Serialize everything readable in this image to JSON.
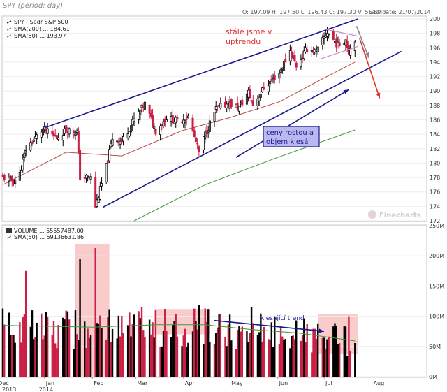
{
  "header": {
    "title": "SPY",
    "period": "(period: day)",
    "ohlc": "O: 197.09   H: 197.50   L: 196.43   C: 197.30   V: 55.6M",
    "last_date": "Last date: 21/07/2014"
  },
  "price_panel": {
    "legend": [
      {
        "label": "SPY - Spdr S&P 500",
        "color": "#000000"
      },
      {
        "label": "SMA(200) ... 184.61",
        "color": "#3a9a3a"
      },
      {
        "label": "SMA(50) ... 193.97",
        "color": "#b84a4a"
      }
    ],
    "annotations": {
      "uptrend": [
        "stále jsme v",
        "uptrendu"
      ],
      "box": [
        "ceny rostou a",
        "objem klesá"
      ]
    },
    "watermark": "Finecharts"
  },
  "volume_panel": {
    "legend": [
      {
        "label": "VOLUME ... 55557487.00",
        "color": "#000000"
      },
      {
        "label": "SMA(50) ... 59136631.86",
        "color": "#3a9a3a"
      }
    ],
    "annotation": "klesající trend"
  },
  "x_axis": {
    "months": [
      "Dec",
      "Jan",
      "Feb",
      "Mar",
      "Apr",
      "May",
      "Jun",
      "Jul",
      "Aug"
    ],
    "years": [
      "2013",
      "2014"
    ]
  },
  "colors": {
    "up": "#000000",
    "down": "#cc1f45",
    "sma200": "#3a9a3a",
    "sma50": "#b84a4a",
    "trendline": "#1a1a8c",
    "highlight": "#f5a0a0"
  },
  "chart_data": [
    {
      "type": "candlestick",
      "title": "SPY",
      "ylim": [
        172,
        200
      ],
      "y_ticks": [
        172,
        174,
        176,
        178,
        180,
        182,
        184,
        186,
        188,
        190,
        192,
        194,
        196,
        198,
        200
      ],
      "x_start": "2013-12-05",
      "x_end": "2014-09-05",
      "close_series": [
        {
          "date": "2013-12-05",
          "close": 178.0
        },
        {
          "date": "2013-12-12",
          "close": 177.5
        },
        {
          "date": "2013-12-16",
          "close": 178.5
        },
        {
          "date": "2013-12-20",
          "close": 182.0
        },
        {
          "date": "2013-12-31",
          "close": 184.7
        },
        {
          "date": "2014-01-09",
          "close": 183.5
        },
        {
          "date": "2014-01-15",
          "close": 184.7
        },
        {
          "date": "2014-01-22",
          "close": 184.3
        },
        {
          "date": "2014-01-24",
          "close": 178.0
        },
        {
          "date": "2014-01-31",
          "close": 178.0
        },
        {
          "date": "2014-02-03",
          "close": 174.0
        },
        {
          "date": "2014-02-05",
          "close": 175.5
        },
        {
          "date": "2014-02-10",
          "close": 179.5
        },
        {
          "date": "2014-02-14",
          "close": 183.5
        },
        {
          "date": "2014-02-20",
          "close": 183.0
        },
        {
          "date": "2014-02-28",
          "close": 186.0
        },
        {
          "date": "2014-03-07",
          "close": 188.2
        },
        {
          "date": "2014-03-14",
          "close": 184.5
        },
        {
          "date": "2014-03-21",
          "close": 186.3
        },
        {
          "date": "2014-03-28",
          "close": 185.8
        },
        {
          "date": "2014-04-04",
          "close": 186.4
        },
        {
          "date": "2014-04-11",
          "close": 181.5
        },
        {
          "date": "2014-04-15",
          "close": 184.0
        },
        {
          "date": "2014-04-22",
          "close": 187.5
        },
        {
          "date": "2014-04-30",
          "close": 188.3
        },
        {
          "date": "2014-05-07",
          "close": 187.7
        },
        {
          "date": "2014-05-13",
          "close": 189.8
        },
        {
          "date": "2014-05-16",
          "close": 188.1
        },
        {
          "date": "2014-05-23",
          "close": 190.4
        },
        {
          "date": "2014-06-02",
          "close": 192.5
        },
        {
          "date": "2014-06-09",
          "close": 195.6
        },
        {
          "date": "2014-06-13",
          "close": 193.5
        },
        {
          "date": "2014-06-20",
          "close": 195.9
        },
        {
          "date": "2014-06-26",
          "close": 195.4
        },
        {
          "date": "2014-07-03",
          "close": 198.2
        },
        {
          "date": "2014-07-10",
          "close": 196.3
        },
        {
          "date": "2014-07-15",
          "close": 197.2
        },
        {
          "date": "2014-07-17",
          "close": 195.5
        },
        {
          "date": "2014-07-21",
          "close": 197.3
        }
      ],
      "sma50": [
        {
          "date": "2013-12-05",
          "value": 177.0
        },
        {
          "date": "2014-01-15",
          "value": 181.5
        },
        {
          "date": "2014-02-20",
          "value": 181.0
        },
        {
          "date": "2014-03-31",
          "value": 184.5
        },
        {
          "date": "2014-05-01",
          "value": 186.3
        },
        {
          "date": "2014-06-02",
          "value": 188.5
        },
        {
          "date": "2014-07-01",
          "value": 191.8
        },
        {
          "date": "2014-07-21",
          "value": 194.0
        }
      ],
      "sma200": [
        {
          "date": "2014-02-28",
          "value": 172.0
        },
        {
          "date": "2014-04-15",
          "value": 177.0
        },
        {
          "date": "2014-06-01",
          "value": 180.8
        },
        {
          "date": "2014-07-21",
          "value": 184.6
        }
      ],
      "trendlines": [
        {
          "from": {
            "date": "2014-01-01",
            "value": 184.9
          },
          "to": {
            "date": "2014-07-23",
            "value": 200.0
          }
        },
        {
          "from": {
            "date": "2014-02-08",
            "value": 173.9
          },
          "to": {
            "date": "2014-08-20",
            "value": 195.5
          }
        },
        {
          "from": {
            "date": "2014-05-05",
            "value": 180.8
          },
          "to": {
            "date": "2014-07-17",
            "value": 190.2
          }
        },
        {
          "from": {
            "date": "2014-06-28",
            "value": 194.4
          },
          "to": {
            "date": "2014-07-23",
            "value": 196.2
          }
        },
        {
          "from": {
            "date": "2014-07-01",
            "value": 198.6
          },
          "to": {
            "date": "2014-07-23",
            "value": 197.6
          }
        }
      ],
      "arrows": [
        {
          "from": {
            "date": "2014-07-22",
            "value": 199.0
          },
          "to": {
            "date": "2014-07-30",
            "value": 194.6
          },
          "color": "#888888"
        },
        {
          "from": {
            "date": "2014-07-24",
            "value": 197.3
          },
          "to": {
            "date": "2014-08-06",
            "value": 189.0
          },
          "color": "#dd3333"
        }
      ]
    },
    {
      "type": "bar",
      "title": "VOLUME",
      "ylim": [
        0,
        250
      ],
      "y_ticks": [
        0,
        50,
        100,
        150,
        200,
        250
      ],
      "y_tick_labels": [
        "0M",
        "50M",
        "100M",
        "150M",
        "200M",
        "250M"
      ],
      "sma50": [
        {
          "date": "2013-12-05",
          "value": 85
        },
        {
          "date": "2014-02-01",
          "value": 82
        },
        {
          "date": "2014-03-15",
          "value": 86
        },
        {
          "date": "2014-04-15",
          "value": 86
        },
        {
          "date": "2014-05-15",
          "value": 78
        },
        {
          "date": "2014-06-15",
          "value": 72
        },
        {
          "date": "2014-07-21",
          "value": 59
        }
      ],
      "highlights": [
        {
          "from": "2014-01-21",
          "to": "2014-02-12",
          "y_from": 0,
          "y_to": 220
        },
        {
          "from": "2014-03-13",
          "to": "2014-04-18",
          "y_from": 70,
          "y_to": 112
        },
        {
          "from": "2014-06-27",
          "to": "2014-07-23",
          "y_from": 38,
          "y_to": 104
        }
      ],
      "trend_arrow": {
        "from": {
          "date": "2014-04-21",
          "value": 93
        },
        "to": {
          "date": "2014-07-01",
          "value": 75
        }
      },
      "notable_bars": [
        {
          "date": "2013-12-20",
          "value": 175
        },
        {
          "date": "2014-01-24",
          "value": 195
        },
        {
          "date": "2014-02-03",
          "value": 213
        },
        {
          "date": "2014-05-15",
          "value": 115
        },
        {
          "date": "2014-07-17",
          "value": 100
        },
        {
          "date": "2014-07-21",
          "value": 55.6
        }
      ]
    }
  ]
}
